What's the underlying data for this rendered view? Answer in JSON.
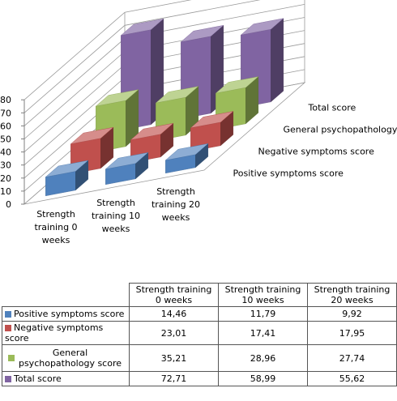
{
  "chart_data": {
    "type": "bar",
    "categories": [
      "Strength training 0 weeks",
      "Strength training 10 weeks",
      "Strength training 20 weeks"
    ],
    "series": [
      {
        "name": "Positive symptoms score",
        "color": "#4f81bd",
        "values": [
          14.46,
          11.79,
          9.92
        ]
      },
      {
        "name": "Negative symptoms score",
        "color": "#c0504d",
        "values": [
          23.01,
          17.41,
          17.95
        ]
      },
      {
        "name": "General psychopathology score",
        "color": "#9bbb59",
        "values": [
          35.21,
          28.96,
          27.74
        ]
      },
      {
        "name": "Total score",
        "color": "#8064a2",
        "values": [
          72.71,
          58.99,
          55.62
        ]
      }
    ],
    "ylim": [
      0,
      80
    ],
    "yticks": [
      "0",
      "10",
      "20",
      "30",
      "40",
      "50",
      "60",
      "70",
      "80"
    ],
    "grid": true,
    "projection": "3d"
  },
  "table": {
    "headers": [
      "Strength training 0 weeks",
      "Strength training 10 weeks",
      "Strength training 20 weeks"
    ],
    "rows": [
      {
        "label": "Positive symptoms score",
        "values": [
          "14,46",
          "11,79",
          "9,92"
        ]
      },
      {
        "label": "Negative symptoms score",
        "values": [
          "23,01",
          "17,41",
          "17,95"
        ]
      },
      {
        "label": "General psychopathology score",
        "values": [
          "35,21",
          "28,96",
          "27,74"
        ]
      },
      {
        "label": "Total score",
        "values": [
          "72,71",
          "58,99",
          "55,62"
        ]
      }
    ]
  }
}
